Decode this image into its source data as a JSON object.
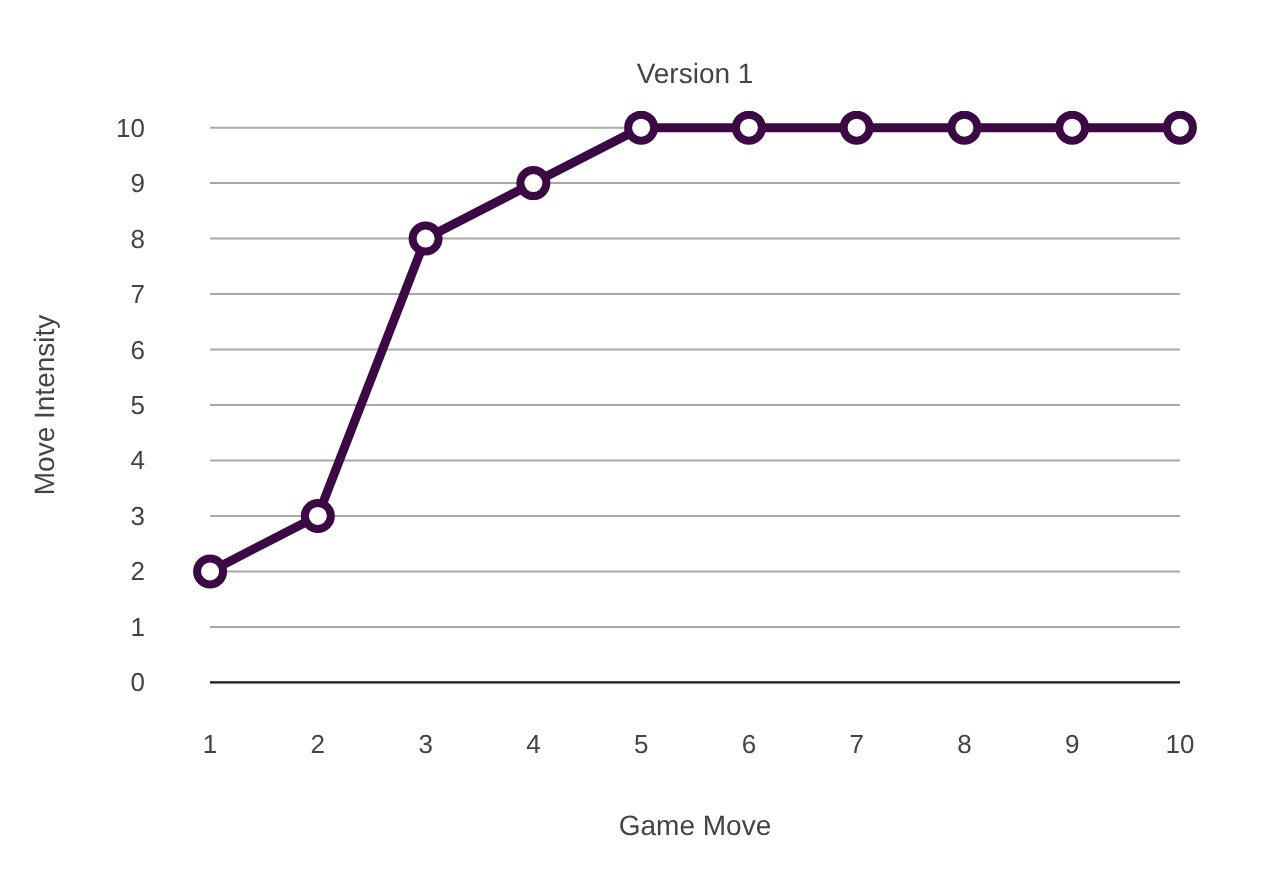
{
  "chart_data": {
    "type": "line",
    "title": "Version 1",
    "xlabel": "Game Move",
    "ylabel": "Move Intensity",
    "x": [
      1,
      2,
      3,
      4,
      5,
      6,
      7,
      8,
      9,
      10
    ],
    "series": [
      {
        "color": "#3b0a45",
        "values": [
          2,
          3,
          8,
          9,
          10,
          10,
          10,
          10,
          10,
          10
        ]
      }
    ],
    "xlim": [
      1,
      10
    ],
    "xticks": [
      1,
      2,
      3,
      4,
      5,
      6,
      7,
      8,
      9,
      10
    ],
    "ylim": [
      0,
      10
    ],
    "yticks": [
      0,
      1,
      2,
      3,
      4,
      5,
      6,
      7,
      8,
      9,
      10
    ],
    "grid": "y",
    "marker": "circle",
    "line_style": "solid"
  }
}
